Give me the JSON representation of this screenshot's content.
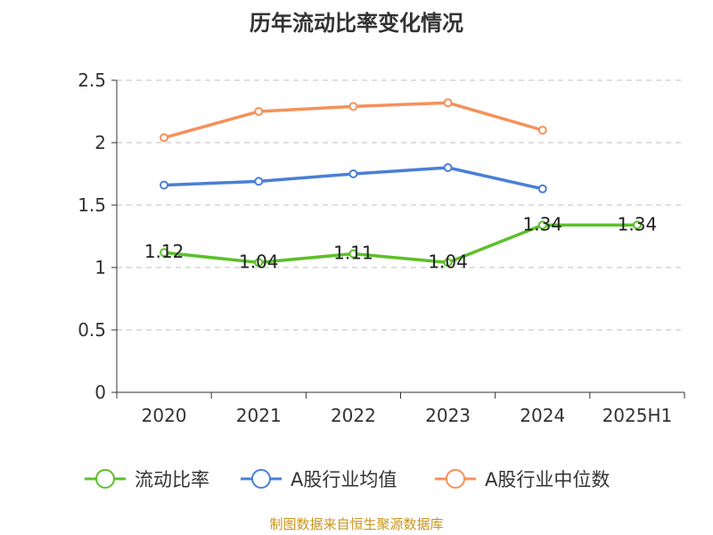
{
  "chart_data": {
    "type": "line",
    "title": "历年流动比率变化情况",
    "categories": [
      "2020",
      "2021",
      "2022",
      "2023",
      "2024",
      "2025H1"
    ],
    "ylim": [
      0,
      2.5
    ],
    "yticks": [
      0,
      0.5,
      1,
      1.5,
      2,
      2.5
    ],
    "ytick_labels": [
      "0",
      "0.5",
      "1",
      "1.5",
      "2",
      "2.5"
    ],
    "grid": true,
    "legend_position": "bottom",
    "series": [
      {
        "name": "流动比率",
        "color": "#5cc02a",
        "values": [
          1.12,
          1.04,
          1.11,
          1.04,
          1.34,
          1.34
        ],
        "labels": [
          "1.12",
          "1.04",
          "1.11",
          "1.04",
          "1.34",
          "1.34"
        ],
        "show_labels": true
      },
      {
        "name": "A股行业均值",
        "color": "#4a7fd6",
        "values": [
          1.66,
          1.69,
          1.75,
          1.8,
          1.63,
          null
        ],
        "show_labels": false
      },
      {
        "name": "A股行业中位数",
        "color": "#f5915a",
        "values": [
          2.04,
          2.25,
          2.29,
          2.32,
          2.1,
          null
        ],
        "show_labels": false
      }
    ]
  },
  "source": "制图数据来自恒生聚源数据库"
}
